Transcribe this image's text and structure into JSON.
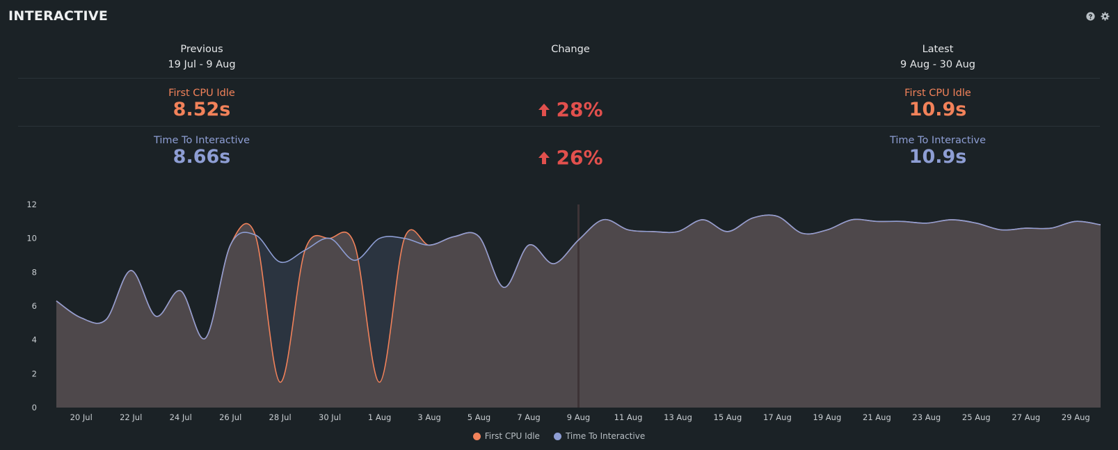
{
  "panel": {
    "title": "INTERACTIVE"
  },
  "icons": {
    "help": "question-circle-icon",
    "settings": "gear-icon"
  },
  "summary": {
    "previous": {
      "label": "Previous",
      "range": "19 Jul - 9 Aug",
      "fci": "8.52s",
      "tti": "8.66s"
    },
    "change": {
      "label": "Change",
      "fci": "28%",
      "tti": "26%",
      "direction": "up"
    },
    "latest": {
      "label": "Latest",
      "range": "9 Aug - 30 Aug",
      "fci": "10.9s",
      "tti": "10.9s"
    },
    "metric_labels": {
      "fci": "First CPU Idle",
      "tti": "Time To Interactive"
    }
  },
  "colors": {
    "background": "#1b2226",
    "fci": "#f2825a",
    "tti": "#8e9ed4",
    "change_bad": "#e2504d",
    "area_fill": "#4e484b",
    "tti_only_fill": "#2b3440"
  },
  "chart_data": {
    "type": "area",
    "ylim": [
      0,
      12
    ],
    "yticks": [
      0,
      2,
      4,
      6,
      8,
      10,
      12
    ],
    "xlim": [
      "2019-07-19",
      "2019-08-30"
    ],
    "xtick_labels": [
      "20 Jul",
      "22 Jul",
      "24 Jul",
      "26 Jul",
      "28 Jul",
      "30 Jul",
      "1 Aug",
      "3 Aug",
      "5 Aug",
      "7 Aug",
      "9 Aug",
      "11 Aug",
      "13 Aug",
      "15 Aug",
      "17 Aug",
      "19 Aug",
      "21 Aug",
      "23 Aug",
      "25 Aug",
      "27 Aug",
      "29 Aug"
    ],
    "xtick_dates": [
      "2019-07-20",
      "2019-07-22",
      "2019-07-24",
      "2019-07-26",
      "2019-07-28",
      "2019-07-30",
      "2019-08-01",
      "2019-08-03",
      "2019-08-05",
      "2019-08-07",
      "2019-08-09",
      "2019-08-11",
      "2019-08-13",
      "2019-08-15",
      "2019-08-17",
      "2019-08-19",
      "2019-08-21",
      "2019-08-23",
      "2019-08-25",
      "2019-08-27",
      "2019-08-29"
    ],
    "period_divider_date": "2019-08-09",
    "grid": false,
    "legend": "bottom-center",
    "series": [
      {
        "name": "First CPU Idle",
        "color": "#f2825a",
        "points": [
          [
            "2019-07-19",
            6.3
          ],
          [
            "2019-07-20",
            5.3
          ],
          [
            "2019-07-21",
            5.2
          ],
          [
            "2019-07-22",
            8.1
          ],
          [
            "2019-07-23",
            5.4
          ],
          [
            "2019-07-24",
            6.9
          ],
          [
            "2019-07-25",
            4.1
          ],
          [
            "2019-07-26",
            9.6
          ],
          [
            "2019-07-27",
            10.2
          ],
          [
            "2019-07-28",
            1.5
          ],
          [
            "2019-07-29",
            9.3
          ],
          [
            "2019-07-30",
            10.0
          ],
          [
            "2019-07-31",
            9.6
          ],
          [
            "2019-08-01",
            1.5
          ],
          [
            "2019-08-02",
            10.0
          ],
          [
            "2019-08-03",
            9.6
          ],
          [
            "2019-08-04",
            10.1
          ],
          [
            "2019-08-05",
            10.1
          ],
          [
            "2019-08-06",
            7.1
          ],
          [
            "2019-08-07",
            9.6
          ],
          [
            "2019-08-08",
            8.5
          ],
          [
            "2019-08-09",
            9.9
          ],
          [
            "2019-08-10",
            11.1
          ],
          [
            "2019-08-11",
            10.5
          ],
          [
            "2019-08-12",
            10.4
          ],
          [
            "2019-08-13",
            10.4
          ],
          [
            "2019-08-14",
            11.1
          ],
          [
            "2019-08-15",
            10.4
          ],
          [
            "2019-08-16",
            11.2
          ],
          [
            "2019-08-17",
            11.3
          ],
          [
            "2019-08-18",
            10.3
          ],
          [
            "2019-08-19",
            10.5
          ],
          [
            "2019-08-20",
            11.1
          ],
          [
            "2019-08-21",
            11.0
          ],
          [
            "2019-08-22",
            11.0
          ],
          [
            "2019-08-23",
            10.9
          ],
          [
            "2019-08-24",
            11.1
          ],
          [
            "2019-08-25",
            10.9
          ],
          [
            "2019-08-26",
            10.5
          ],
          [
            "2019-08-27",
            10.6
          ],
          [
            "2019-08-28",
            10.6
          ],
          [
            "2019-08-29",
            11.0
          ],
          [
            "2019-08-30",
            10.8
          ]
        ]
      },
      {
        "name": "Time To Interactive",
        "color": "#8e9ed4",
        "points": [
          [
            "2019-07-19",
            6.3
          ],
          [
            "2019-07-20",
            5.3
          ],
          [
            "2019-07-21",
            5.2
          ],
          [
            "2019-07-22",
            8.1
          ],
          [
            "2019-07-23",
            5.4
          ],
          [
            "2019-07-24",
            6.9
          ],
          [
            "2019-07-25",
            4.1
          ],
          [
            "2019-07-26",
            9.6
          ],
          [
            "2019-07-27",
            10.2
          ],
          [
            "2019-07-28",
            8.6
          ],
          [
            "2019-07-29",
            9.3
          ],
          [
            "2019-07-30",
            10.0
          ],
          [
            "2019-07-31",
            8.7
          ],
          [
            "2019-08-01",
            10.0
          ],
          [
            "2019-08-02",
            10.0
          ],
          [
            "2019-08-03",
            9.6
          ],
          [
            "2019-08-04",
            10.1
          ],
          [
            "2019-08-05",
            10.1
          ],
          [
            "2019-08-06",
            7.1
          ],
          [
            "2019-08-07",
            9.6
          ],
          [
            "2019-08-08",
            8.5
          ],
          [
            "2019-08-09",
            9.9
          ],
          [
            "2019-08-10",
            11.1
          ],
          [
            "2019-08-11",
            10.5
          ],
          [
            "2019-08-12",
            10.4
          ],
          [
            "2019-08-13",
            10.4
          ],
          [
            "2019-08-14",
            11.1
          ],
          [
            "2019-08-15",
            10.4
          ],
          [
            "2019-08-16",
            11.2
          ],
          [
            "2019-08-17",
            11.3
          ],
          [
            "2019-08-18",
            10.3
          ],
          [
            "2019-08-19",
            10.5
          ],
          [
            "2019-08-20",
            11.1
          ],
          [
            "2019-08-21",
            11.0
          ],
          [
            "2019-08-22",
            11.0
          ],
          [
            "2019-08-23",
            10.9
          ],
          [
            "2019-08-24",
            11.1
          ],
          [
            "2019-08-25",
            10.9
          ],
          [
            "2019-08-26",
            10.5
          ],
          [
            "2019-08-27",
            10.6
          ],
          [
            "2019-08-28",
            10.6
          ],
          [
            "2019-08-29",
            11.0
          ],
          [
            "2019-08-30",
            10.8
          ]
        ]
      }
    ]
  }
}
